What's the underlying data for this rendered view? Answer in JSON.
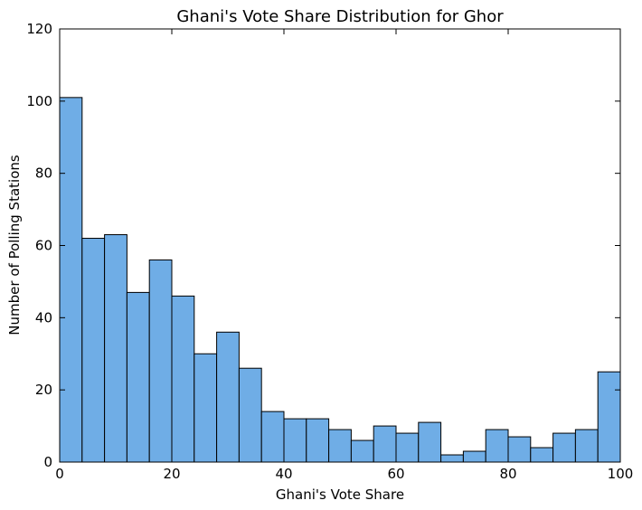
{
  "chart_data": {
    "type": "bar",
    "title": "Ghani's Vote Share Distribution for Ghor",
    "xlabel": "Ghani's Vote Share",
    "ylabel": "Number of Polling Stations",
    "xlim": [
      0,
      100
    ],
    "ylim": [
      0,
      120
    ],
    "x_ticks": [
      0,
      20,
      40,
      60,
      80,
      100
    ],
    "y_ticks": [
      0,
      20,
      40,
      60,
      80,
      100,
      120
    ],
    "x_tick_labels": [
      "0",
      "20",
      "40",
      "60",
      "80",
      "100"
    ],
    "y_tick_labels": [
      "0",
      "20",
      "40",
      "60",
      "80",
      "100",
      "120"
    ],
    "bins": 25,
    "bin_width": 4,
    "bin_edges": [
      0,
      4,
      8,
      12,
      16,
      20,
      24,
      28,
      32,
      36,
      40,
      44,
      48,
      52,
      56,
      60,
      64,
      68,
      72,
      76,
      80,
      84,
      88,
      92,
      96,
      100
    ],
    "values": [
      101,
      62,
      63,
      47,
      56,
      46,
      30,
      36,
      26,
      14,
      12,
      12,
      9,
      6,
      10,
      8,
      11,
      2,
      3,
      9,
      7,
      4,
      8,
      9,
      25
    ],
    "bar_color": "#6fade6",
    "edge_color": "#000000",
    "grid": false,
    "legend": "none"
  }
}
